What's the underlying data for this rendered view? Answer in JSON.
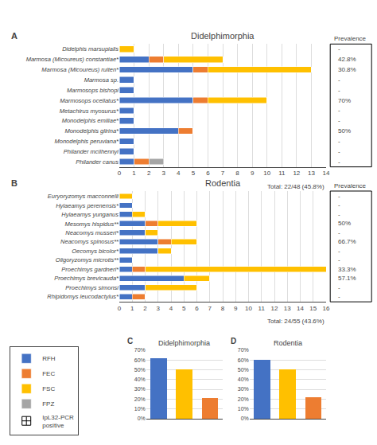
{
  "chart_data": [
    {
      "type": "bar",
      "orientation": "horizontal",
      "stacked": true,
      "panel_label": "A",
      "title": "Didelphimorphia",
      "categories": [
        "Didelphis marsupialis",
        "Marmosa (Micoureus) constantiae*",
        "Marmosa (Micoureus) ruiten*",
        "Marmosa sp.",
        "Marmosops bishopi",
        "Marmosops ocellatus*",
        "Metachirus myosurus*",
        "Monodelphis emiliae*",
        "Monodelphis glirina*",
        "Monodelphis peruviana*",
        "Philander mcilhennyi",
        "Philander canus"
      ],
      "series": [
        {
          "name": "RFH",
          "color": "#4472C4",
          "values": [
            0,
            2,
            5,
            1,
            1,
            5,
            1,
            1,
            4,
            1,
            1,
            1
          ]
        },
        {
          "name": "FEC",
          "color": "#ED7D31",
          "values": [
            0,
            1,
            1,
            0,
            0,
            1,
            0,
            0,
            1,
            0,
            0,
            1
          ]
        },
        {
          "name": "FSC",
          "color": "#FFC000",
          "values": [
            1,
            4,
            7,
            0,
            0,
            4,
            0,
            0,
            0,
            0,
            0,
            0
          ]
        },
        {
          "name": "FPZ",
          "color": "#A5A5A5",
          "values": [
            0,
            0,
            0,
            0,
            0,
            0,
            0,
            0,
            0,
            0,
            0,
            1
          ]
        }
      ],
      "xlim": [
        0,
        14
      ],
      "xticks": [
        0,
        1,
        2,
        3,
        4,
        5,
        6,
        7,
        8,
        9,
        10,
        11,
        12,
        13,
        14
      ],
      "grid": true,
      "legend": "bottom left",
      "legend_extra": [
        {
          "name": "IpL32-PCR\npositive",
          "color": "white",
          "marker": "square-cross"
        }
      ],
      "prevalence_title": "Prevalence",
      "prevalence": [
        "-",
        "42.8%",
        "30.8%",
        "-",
        "-",
        "70%",
        "-",
        "-",
        "50%",
        "-",
        "-",
        "-"
      ],
      "annotations": [
        "Total: 22/48 (45.8%)"
      ]
    },
    {
      "type": "bar",
      "orientation": "horizontal",
      "stacked": true,
      "panel_label": "B",
      "title": "Rodentia",
      "categories": [
        "Euryoryzomys macconnelli",
        "Hylaeamys perenensis*",
        "Hylaeamys yunganus",
        "Mesomys hispidus**",
        "Neacomys musseri*",
        "Neacomys spinosus**",
        "Oecomys bicolor*",
        "Oligoryzomys microtis**",
        "Proechimys gardneri*",
        "Proechimys brevicauda*",
        "Proechimys simonsi",
        "Rhipidomys leucodactylus*"
      ],
      "series": [
        {
          "name": "RFH",
          "color": "#4472C4",
          "values": [
            0,
            1,
            1,
            2,
            2,
            3,
            3,
            1,
            1,
            5,
            2,
            1
          ]
        },
        {
          "name": "FEC",
          "color": "#ED7D31",
          "values": [
            0,
            0,
            0,
            1,
            0,
            1,
            0,
            0,
            1,
            0,
            0,
            1
          ]
        },
        {
          "name": "FSC",
          "color": "#FFC000",
          "values": [
            1,
            0,
            1,
            3,
            1,
            2,
            1,
            0,
            14,
            2,
            4,
            0
          ]
        },
        {
          "name": "FPZ",
          "color": "#A5A5A5",
          "values": [
            0,
            0,
            0,
            0,
            0,
            0,
            0,
            0,
            0,
            0,
            0,
            0
          ]
        }
      ],
      "xlim": [
        0,
        16
      ],
      "xticks": [
        0,
        1,
        2,
        3,
        4,
        5,
        6,
        7,
        8,
        9,
        10,
        11,
        12,
        13,
        14,
        15,
        16
      ],
      "grid": true,
      "prevalence_title": "Prevalence",
      "prevalence": [
        "-",
        "-",
        "-",
        "50%",
        "-",
        "66.7%",
        "-",
        "-",
        "33.3%",
        "57.1%",
        "-",
        "-"
      ],
      "annotations": [
        "Total: 24/55 (43.6%)"
      ]
    },
    {
      "type": "bar",
      "panel_label": "C",
      "title": "Didelphimorphia",
      "categories": [
        null,
        null,
        null
      ],
      "values": [
        62,
        50,
        21
      ],
      "colors": [
        "#4472C4",
        "#FFC000",
        "#ED7D31"
      ],
      "ylim": [
        0,
        70
      ],
      "yticks": [
        {
          "value": 0,
          "label": "0%"
        },
        {
          "value": 10,
          "label": "10%"
        },
        {
          "value": 20,
          "label": "20%"
        },
        {
          "value": 30,
          "label": "30%"
        },
        {
          "value": 40,
          "label": "40%"
        },
        {
          "value": 50,
          "label": "50%"
        },
        {
          "value": 60,
          "label": "60%"
        },
        {
          "value": 70,
          "label": "70%"
        }
      ],
      "grid": true,
      "tick_labels": "y"
    },
    {
      "type": "bar",
      "panel_label": "D",
      "title": "Rodentia",
      "categories": [
        null,
        null,
        null
      ],
      "values": [
        60,
        50,
        22
      ],
      "colors": [
        "#4472C4",
        "#FFC000",
        "#ED7D31"
      ],
      "ylim": [
        0,
        70
      ],
      "yticks": [
        {
          "value": 0,
          "label": "0%"
        },
        {
          "value": 10,
          "label": "10%"
        },
        {
          "value": 20,
          "label": "20%"
        },
        {
          "value": 30,
          "label": "30%"
        },
        {
          "value": 40,
          "label": "40%"
        },
        {
          "value": 50,
          "label": "50%"
        },
        {
          "value": 60,
          "label": "60%"
        },
        {
          "value": 70,
          "label": "70%"
        }
      ],
      "grid": true,
      "tick_labels": "y"
    }
  ]
}
